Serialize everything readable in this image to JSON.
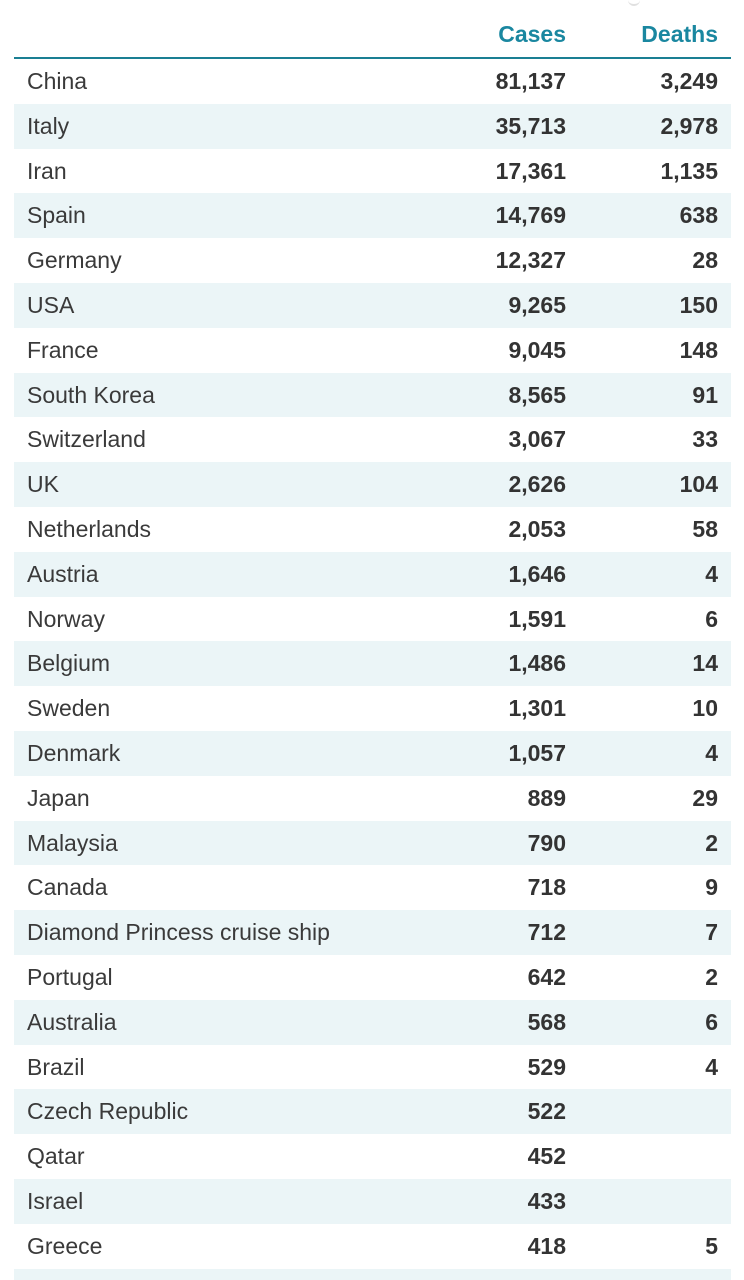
{
  "table": {
    "headers": {
      "cases": "Cases",
      "deaths": "Deaths"
    },
    "rows": [
      {
        "country": "China",
        "cases": "81,137",
        "deaths": "3,249"
      },
      {
        "country": "Italy",
        "cases": "35,713",
        "deaths": "2,978"
      },
      {
        "country": "Iran",
        "cases": "17,361",
        "deaths": "1,135"
      },
      {
        "country": "Spain",
        "cases": "14,769",
        "deaths": "638"
      },
      {
        "country": "Germany",
        "cases": "12,327",
        "deaths": "28"
      },
      {
        "country": "USA",
        "cases": "9,265",
        "deaths": "150"
      },
      {
        "country": "France",
        "cases": "9,045",
        "deaths": "148"
      },
      {
        "country": "South Korea",
        "cases": "8,565",
        "deaths": "91"
      },
      {
        "country": "Switzerland",
        "cases": "3,067",
        "deaths": "33"
      },
      {
        "country": "UK",
        "cases": "2,626",
        "deaths": "104"
      },
      {
        "country": "Netherlands",
        "cases": "2,053",
        "deaths": "58"
      },
      {
        "country": "Austria",
        "cases": "1,646",
        "deaths": "4"
      },
      {
        "country": "Norway",
        "cases": "1,591",
        "deaths": "6"
      },
      {
        "country": "Belgium",
        "cases": "1,486",
        "deaths": "14"
      },
      {
        "country": "Sweden",
        "cases": "1,301",
        "deaths": "10"
      },
      {
        "country": "Denmark",
        "cases": "1,057",
        "deaths": "4"
      },
      {
        "country": "Japan",
        "cases": "889",
        "deaths": "29"
      },
      {
        "country": "Malaysia",
        "cases": "790",
        "deaths": "2"
      },
      {
        "country": "Canada",
        "cases": "718",
        "deaths": "9"
      },
      {
        "country": "Diamond Princess cruise ship",
        "cases": "712",
        "deaths": "7"
      },
      {
        "country": "Portugal",
        "cases": "642",
        "deaths": "2"
      },
      {
        "country": "Australia",
        "cases": "568",
        "deaths": "6"
      },
      {
        "country": "Brazil",
        "cases": "529",
        "deaths": "4"
      },
      {
        "country": "Czech Republic",
        "cases": "522",
        "deaths": ""
      },
      {
        "country": "Qatar",
        "cases": "452",
        "deaths": ""
      },
      {
        "country": "Israel",
        "cases": "433",
        "deaths": ""
      },
      {
        "country": "Greece",
        "cases": "418",
        "deaths": "5"
      }
    ]
  },
  "colors": {
    "header_text": "#1a87a0",
    "header_rule": "#1a7f93",
    "alt_row": "#ebf5f7"
  }
}
